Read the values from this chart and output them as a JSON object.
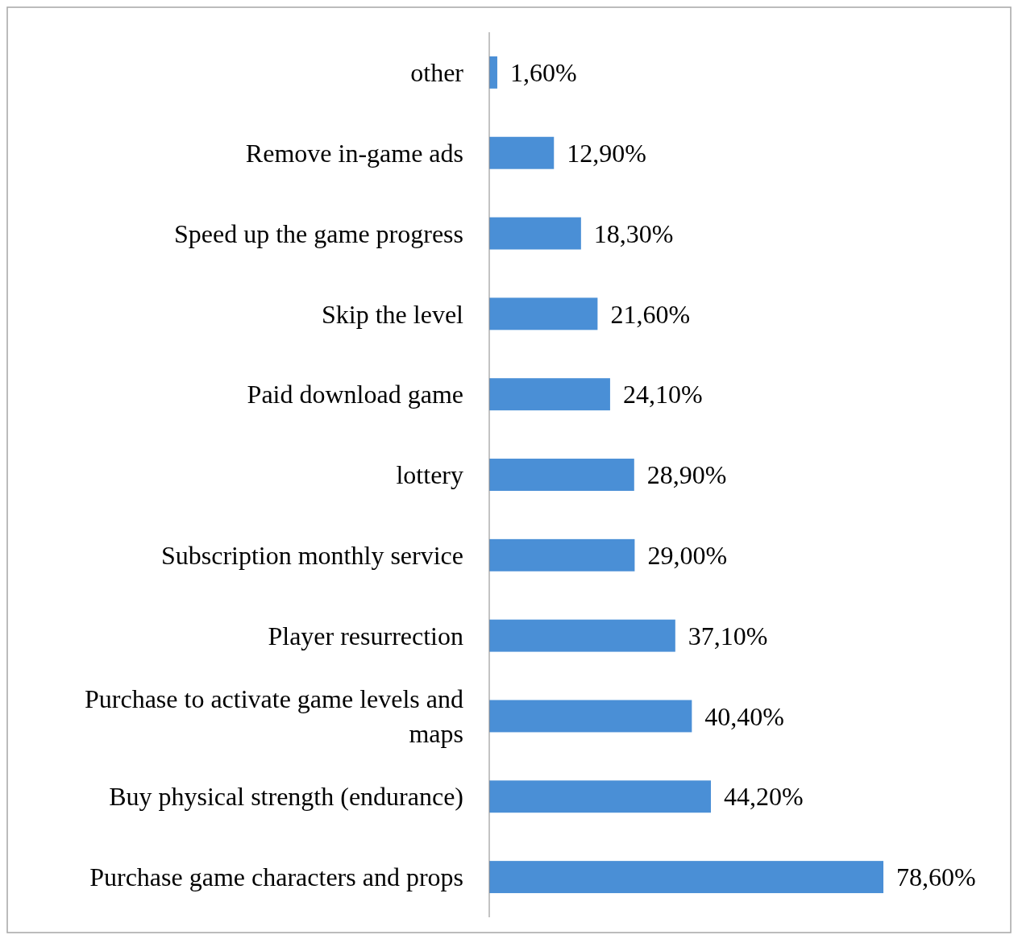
{
  "chart_data": {
    "type": "bar",
    "orientation": "horizontal",
    "categories": [
      "other",
      "Remove in-game ads",
      "Speed up the game progress",
      "Skip the level",
      "Paid download game",
      "lottery",
      "Subscription monthly service",
      "Player resurrection",
      "Purchase to activate game levels and maps",
      "Buy physical strength (endurance)",
      "Purchase game characters and props"
    ],
    "values": [
      1.6,
      12.9,
      18.3,
      21.6,
      24.1,
      28.9,
      29.0,
      37.1,
      40.4,
      44.2,
      78.6
    ],
    "value_labels": [
      "1,60%",
      "12,90%",
      "18,30%",
      "21,60%",
      "24,10%",
      "28,90%",
      "29,00%",
      "37,10%",
      "40,40%",
      "44,20%",
      "78,60%"
    ],
    "color": "#4a8fd6"
  }
}
